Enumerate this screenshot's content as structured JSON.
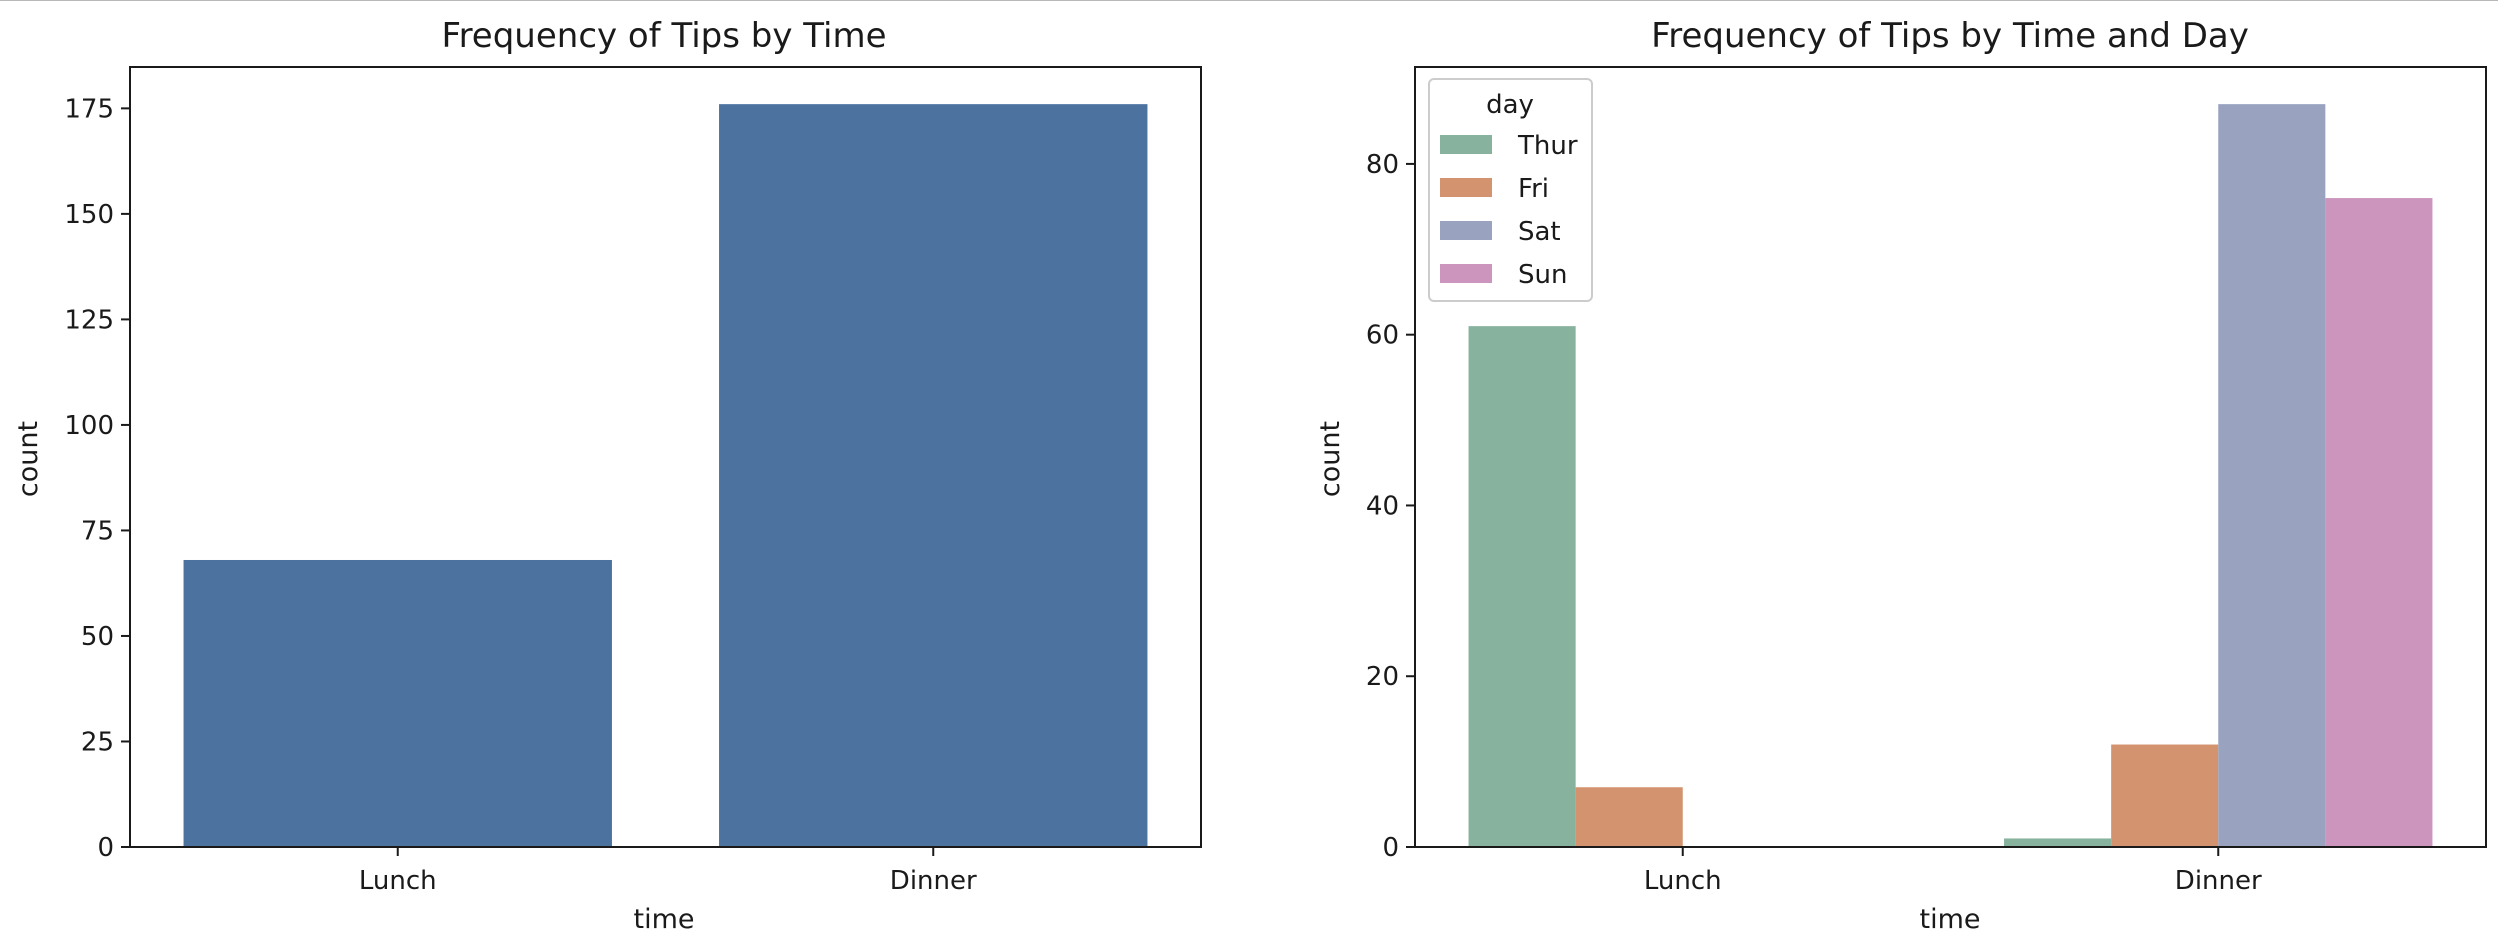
{
  "chart_data": [
    {
      "type": "bar",
      "title": "Frequency of Tips by Time",
      "xlabel": "time",
      "ylabel": "count",
      "categories": [
        "Lunch",
        "Dinner"
      ],
      "values": [
        68,
        176
      ],
      "ylim": [
        0,
        184.8
      ],
      "yticks": [
        0,
        25,
        50,
        75,
        100,
        125,
        150,
        175
      ],
      "grid": false,
      "color": "#4c72a0"
    },
    {
      "type": "bar",
      "title": "Frequency of Tips by Time and Day",
      "xlabel": "time",
      "ylabel": "count",
      "categories": [
        "Lunch",
        "Dinner"
      ],
      "series": [
        {
          "name": "Thur",
          "values": [
            61,
            1
          ],
          "color": "#87b29e"
        },
        {
          "name": "Fri",
          "values": [
            7,
            12
          ],
          "color": "#d4936f"
        },
        {
          "name": "Sat",
          "values": [
            0,
            87
          ],
          "color": "#99a3bf"
        },
        {
          "name": "Sun",
          "values": [
            0,
            76
          ],
          "color": "#cc95bd"
        }
      ],
      "ylim": [
        0,
        91.35
      ],
      "yticks": [
        0,
        20,
        40,
        60,
        80
      ],
      "legend_title": "day",
      "legend_position": "upper-left",
      "grid": false
    }
  ]
}
